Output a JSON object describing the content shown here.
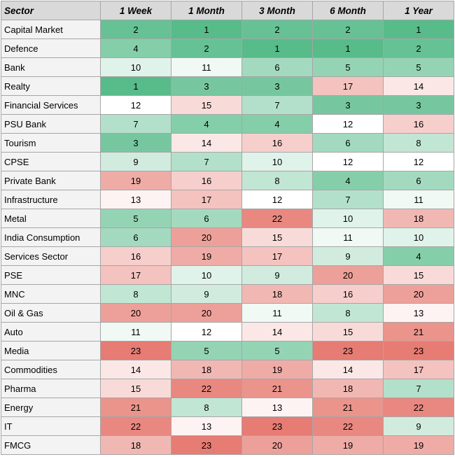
{
  "headers": [
    "Sector",
    "1 Week",
    "1 Month",
    "3 Month",
    "6 Month",
    "1 Year"
  ],
  "scale": {
    "min": 1,
    "max": 23,
    "best_color": "#57bb8a",
    "mid_color": "#ffffff",
    "worst_color": "#e67c73"
  },
  "rows": [
    {
      "sector": "Capital Market",
      "ranks": [
        2,
        1,
        2,
        2,
        1
      ]
    },
    {
      "sector": "Defence",
      "ranks": [
        4,
        2,
        1,
        1,
        2
      ]
    },
    {
      "sector": "Bank",
      "ranks": [
        10,
        11,
        6,
        5,
        5
      ]
    },
    {
      "sector": "Realty",
      "ranks": [
        1,
        3,
        3,
        17,
        14
      ]
    },
    {
      "sector": "Financial Services",
      "ranks": [
        12,
        15,
        7,
        3,
        3
      ]
    },
    {
      "sector": "PSU Bank",
      "ranks": [
        7,
        4,
        4,
        12,
        16
      ]
    },
    {
      "sector": "Tourism",
      "ranks": [
        3,
        14,
        16,
        6,
        8
      ]
    },
    {
      "sector": "CPSE",
      "ranks": [
        9,
        7,
        10,
        12,
        12
      ]
    },
    {
      "sector": "Private Bank",
      "ranks": [
        19,
        16,
        8,
        4,
        6
      ]
    },
    {
      "sector": "Infrastructure",
      "ranks": [
        13,
        17,
        12,
        7,
        11
      ]
    },
    {
      "sector": "Metal",
      "ranks": [
        5,
        6,
        22,
        10,
        18
      ]
    },
    {
      "sector": "India Consumption",
      "ranks": [
        6,
        20,
        15,
        11,
        10
      ]
    },
    {
      "sector": "Services Sector",
      "ranks": [
        16,
        19,
        17,
        9,
        4
      ]
    },
    {
      "sector": "PSE",
      "ranks": [
        17,
        10,
        9,
        20,
        15
      ]
    },
    {
      "sector": "MNC",
      "ranks": [
        8,
        9,
        18,
        16,
        20
      ]
    },
    {
      "sector": "Oil & Gas",
      "ranks": [
        20,
        20,
        11,
        8,
        13
      ]
    },
    {
      "sector": "Auto",
      "ranks": [
        11,
        12,
        14,
        15,
        21
      ]
    },
    {
      "sector": "Media",
      "ranks": [
        23,
        5,
        5,
        23,
        23
      ]
    },
    {
      "sector": "Commodities",
      "ranks": [
        14,
        18,
        19,
        14,
        17
      ]
    },
    {
      "sector": "Pharma",
      "ranks": [
        15,
        22,
        21,
        18,
        7
      ]
    },
    {
      "sector": "Energy",
      "ranks": [
        21,
        8,
        13,
        21,
        22
      ]
    },
    {
      "sector": "IT",
      "ranks": [
        22,
        13,
        23,
        22,
        9
      ]
    },
    {
      "sector": "FMCG",
      "ranks": [
        18,
        23,
        20,
        19,
        19
      ]
    }
  ]
}
